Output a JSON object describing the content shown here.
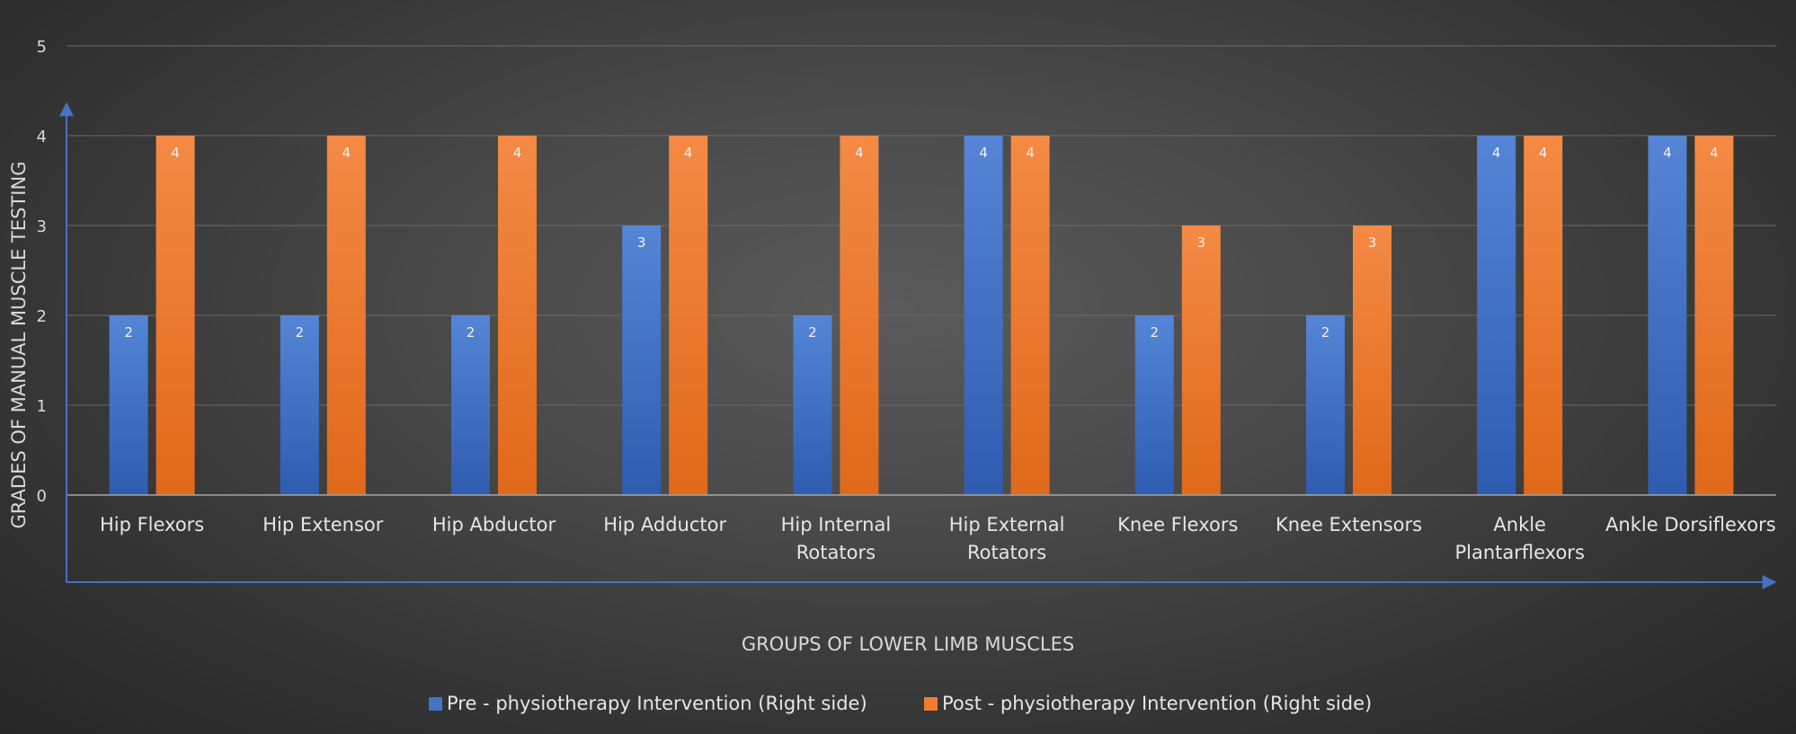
{
  "chart_data": {
    "type": "bar",
    "title": "",
    "xlabel": "GROUPS OF LOWER LIMB MUSCLES",
    "ylabel": "GRADES OF MANUAL MUSCLE TESTING",
    "ylim": [
      0,
      5
    ],
    "yticks": [
      "0",
      "1",
      "2",
      "3",
      "4",
      "5"
    ],
    "grid": true,
    "legend_position": "bottom",
    "categories": [
      [
        "Hip Flexors"
      ],
      [
        "Hip Extensor"
      ],
      [
        "Hip Abductor"
      ],
      [
        "Hip Adductor"
      ],
      [
        "Hip Internal",
        "Rotators"
      ],
      [
        "Hip External",
        "Rotators"
      ],
      [
        "Knee Flexors"
      ],
      [
        "Knee Extensors"
      ],
      [
        "Ankle",
        "Plantarflexors"
      ],
      [
        "Ankle Dorsiflexors"
      ]
    ],
    "series": [
      {
        "name": "Pre - physiotherapy Intervention (Right side)",
        "color": "#4472c4",
        "values": [
          2,
          2,
          2,
          3,
          2,
          4,
          2,
          2,
          4,
          4
        ]
      },
      {
        "name": "Post - physiotherapy Intervention (Right side)",
        "color": "#ed7d31",
        "values": [
          4,
          4,
          4,
          4,
          4,
          4,
          3,
          3,
          4,
          4
        ]
      }
    ]
  }
}
